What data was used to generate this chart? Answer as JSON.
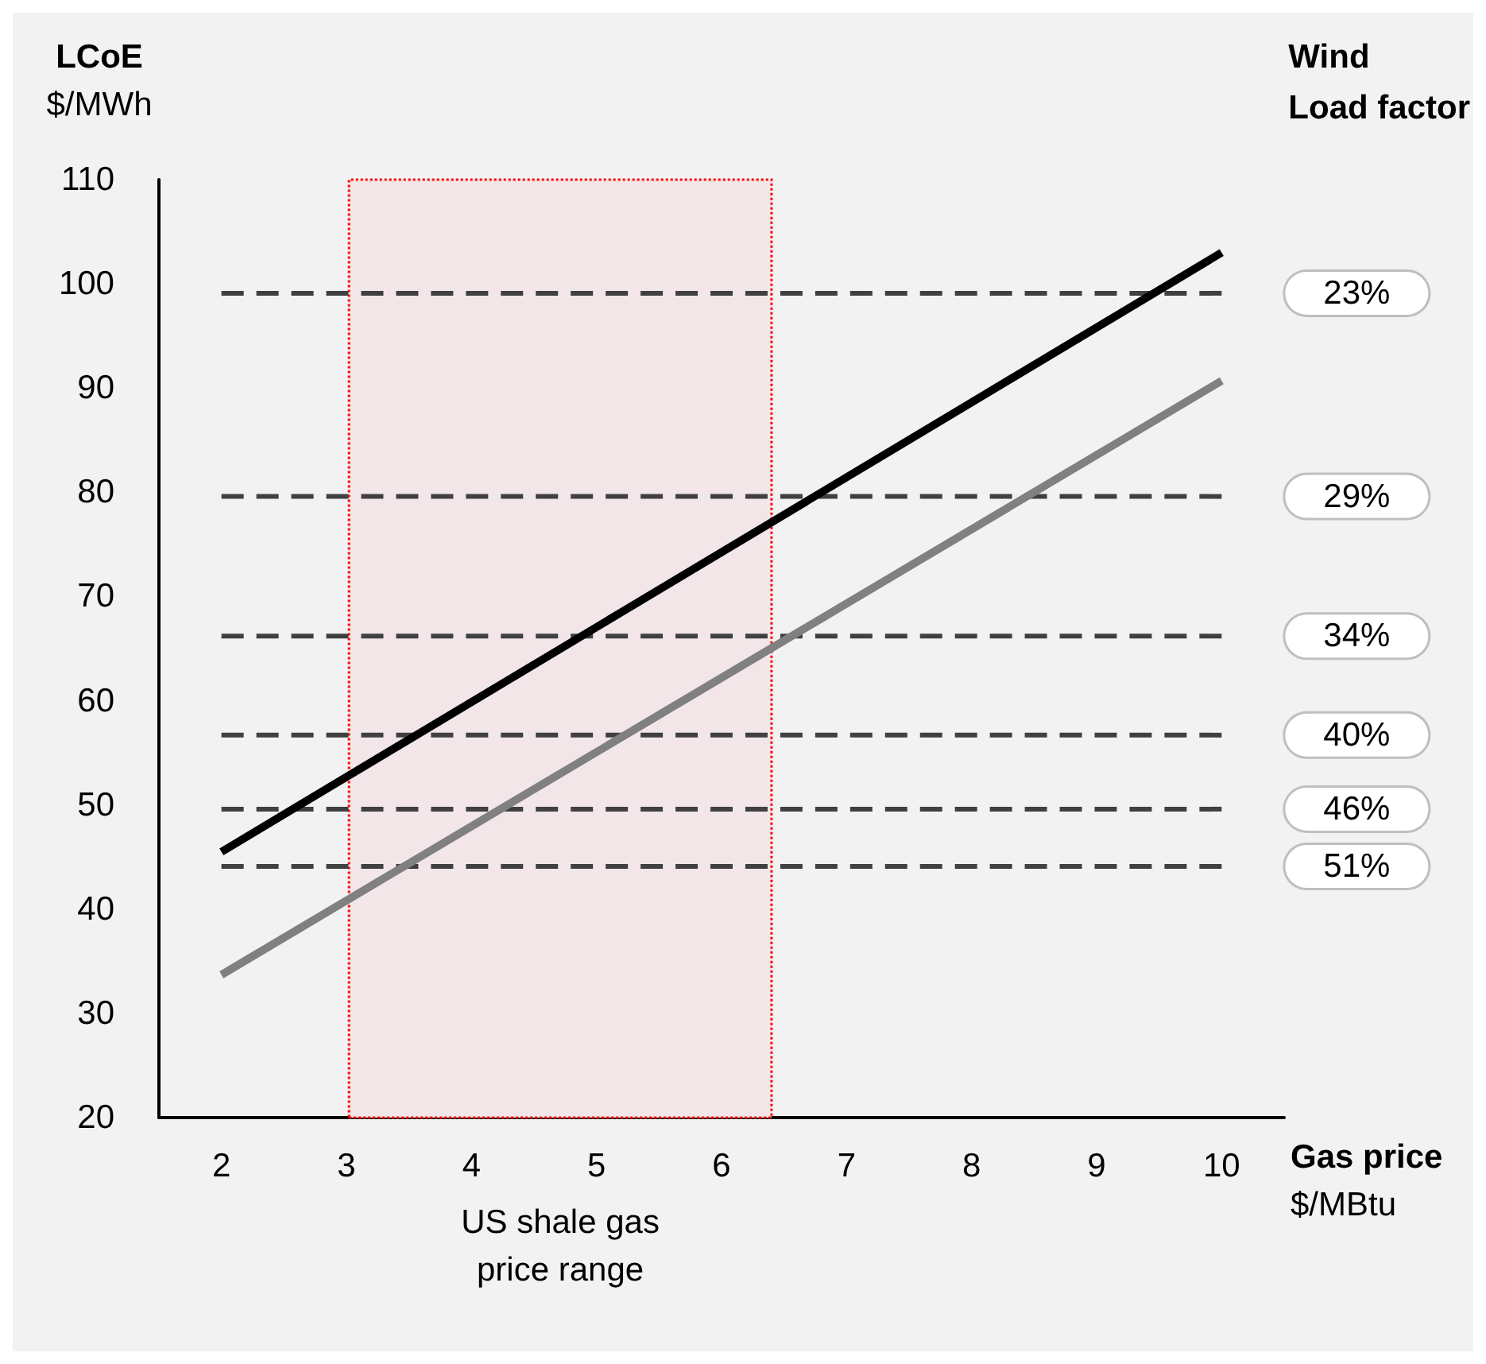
{
  "chart_data": {
    "type": "line",
    "xlabel": "Gas price\n$/MBtu",
    "ylabel": "LCoE\n$/MWh",
    "legend_title": "Wind\nLoad factor",
    "x": [
      2,
      10
    ],
    "series": [
      {
        "color": "#000000",
        "values": [
          45.5,
          103
        ]
      },
      {
        "color": "#808080",
        "values": [
          33.7,
          90.7
        ]
      },
      {
        "name": "23%",
        "color": "#404040",
        "line_style": "dashed",
        "values": [
          99.1,
          99.1
        ]
      },
      {
        "name": "29%",
        "color": "#404040",
        "line_style": "dashed",
        "values": [
          79.6,
          79.6
        ]
      },
      {
        "name": "34%",
        "color": "#404040",
        "line_style": "dashed",
        "values": [
          66.2,
          66.2
        ]
      },
      {
        "name": "40%",
        "color": "#404040",
        "line_style": "dashed",
        "values": [
          56.7,
          56.7
        ]
      },
      {
        "name": "46%",
        "color": "#404040",
        "line_style": "dashed",
        "values": [
          49.6,
          49.6
        ]
      },
      {
        "name": "51%",
        "color": "#404040",
        "line_style": "dashed",
        "values": [
          44.1,
          44.1
        ]
      }
    ],
    "xlim": [
      1.5,
      10.5
    ],
    "xticks": [
      2,
      3,
      4,
      5,
      6,
      7,
      8,
      9,
      10
    ],
    "ylim": [
      20,
      110
    ],
    "yticks": [
      20,
      30,
      40,
      50,
      60,
      70,
      80,
      90,
      100,
      110
    ],
    "grid": false,
    "legend": false,
    "marker": "none",
    "line_style": "solid",
    "bands": [
      {
        "axis": "x",
        "from": 3.02,
        "to": 6.4,
        "label": "US shale gas\nprice range",
        "color": "#f2e6e8"
      }
    ]
  }
}
